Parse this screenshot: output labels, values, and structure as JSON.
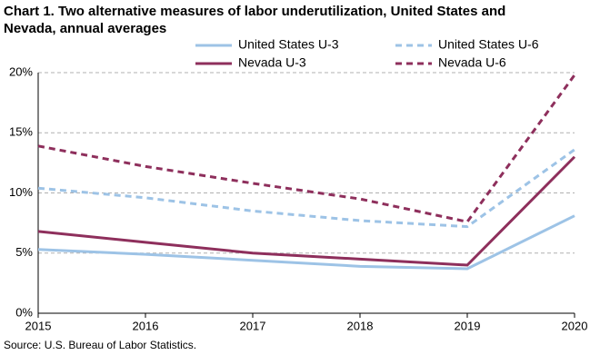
{
  "chart_data": {
    "type": "line",
    "title": "Chart 1. Two alternative measures of labor underutilization, United States and Nevada, annual averages",
    "source": "Source: U.S. Bureau of Labor Statistics.",
    "categories": [
      "2015",
      "2016",
      "2017",
      "2018",
      "2019",
      "2020"
    ],
    "series": [
      {
        "name": "United States U-3",
        "color": "#9dc3e6",
        "dashed": false,
        "values": [
          5.3,
          4.9,
          4.4,
          3.9,
          3.7,
          8.1
        ]
      },
      {
        "name": "United States U-6",
        "color": "#9dc3e6",
        "dashed": true,
        "values": [
          10.4,
          9.6,
          8.5,
          7.7,
          7.2,
          13.6
        ]
      },
      {
        "name": "Nevada U-3",
        "color": "#8e2f5c",
        "dashed": false,
        "values": [
          6.8,
          5.9,
          5.0,
          4.5,
          4.0,
          13.0
        ]
      },
      {
        "name": "Nevada U-6",
        "color": "#8e2f5c",
        "dashed": true,
        "values": [
          13.9,
          12.2,
          10.8,
          9.5,
          7.6,
          19.8
        ]
      }
    ],
    "ylim": [
      0,
      20
    ],
    "yticks": [
      {
        "value": 0,
        "label": "0%"
      },
      {
        "value": 5,
        "label": "5%"
      },
      {
        "value": 10,
        "label": "10%"
      },
      {
        "value": 15,
        "label": "15%"
      },
      {
        "value": 20,
        "label": "20%"
      }
    ],
    "grid": true
  }
}
